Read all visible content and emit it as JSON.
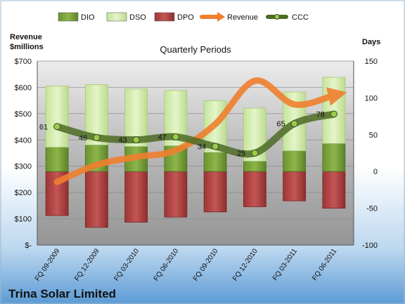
{
  "chart_data": {
    "type": "bar",
    "title": "Quarterly Periods",
    "company": "Trina Solar Limited",
    "left_axis_label": [
      "Revenue",
      "$millions"
    ],
    "right_axis_label": "Days",
    "categories": [
      "FQ 09-2009",
      "FQ 12-2009",
      "FQ 03-2010",
      "FQ 06-2010",
      "FQ 09-2010",
      "FQ 12-2010",
      "FQ 03-2011",
      "FQ 06-2011"
    ],
    "left_axis": {
      "min": 0,
      "max": 700,
      "step": 100,
      "tick_labels": [
        "$-",
        "$100",
        "$200",
        "$300",
        "$400",
        "$500",
        "$600",
        "$700"
      ]
    },
    "right_axis": {
      "min": -100,
      "max": 150,
      "step": 50,
      "tick_labels": [
        "-100",
        "-50",
        "0",
        "50",
        "100",
        "150"
      ]
    },
    "series": [
      {
        "name": "DIO",
        "kind": "stacked-bar",
        "axis": "right",
        "values": [
          33,
          36,
          34,
          35,
          26,
          14,
          28,
          38
        ]
      },
      {
        "name": "DSO",
        "kind": "stacked-bar",
        "axis": "right",
        "values": [
          83,
          82,
          78,
          75,
          70,
          72,
          80,
          90
        ]
      },
      {
        "name": "DPO",
        "kind": "negative-bar",
        "axis": "right",
        "values": [
          -60,
          -76,
          -69,
          -62,
          -55,
          -48,
          -40,
          -50
        ]
      },
      {
        "name": "Revenue",
        "kind": "line",
        "axis": "left",
        "values": [
          240,
          305,
          335,
          360,
          460,
          625,
          535,
          570
        ]
      },
      {
        "name": "CCC",
        "kind": "line",
        "axis": "right",
        "values": [
          61,
          46,
          43,
          47,
          34,
          25,
          65,
          78
        ],
        "data_labels": [
          "61",
          "46",
          "43",
          "47",
          "34",
          "25",
          "65",
          "78"
        ]
      }
    ],
    "legend": {
      "position": "top",
      "items": [
        "DIO",
        "DSO",
        "DPO",
        "Revenue",
        "CCC"
      ]
    },
    "grid": true,
    "colors": {
      "DIO": "#7aa23a",
      "DSO": "#d8efb4",
      "DPO": "#b54848",
      "Revenue": "#f07f2e",
      "CCC": "#4d6b24",
      "plot_bg": "#a6a6a6",
      "page_bg_top": "#ffffff",
      "page_bg_bottom": "#5b9bd5"
    }
  }
}
